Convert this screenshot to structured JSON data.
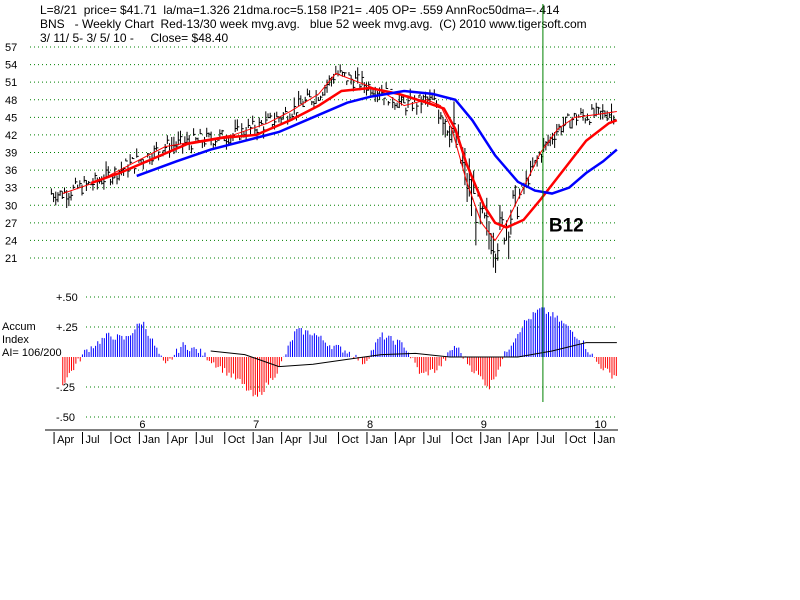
{
  "header": {
    "line1": "L=8/21  price= $41.71  la/ma=1.326 21dma.roc=5.158 IP21= .405 OP= .559 AnnRoc50dma=-.414",
    "line2": "BNS   - Weekly Chart  Red-13/30 week mvg.avg.   blue 52 week mvg.avg.  (C) 2010 www.tigersoft.com",
    "line3": "3/ 11/ 5- 3/ 5/ 10 -     Close= $48.40"
  },
  "accum_label": {
    "line1": "Accum",
    "line2": "Index",
    "line3": "AI= 106/200"
  },
  "signal_label": "B12",
  "colors": {
    "short_ma": "#ff0000",
    "long_ma": "#ff0000",
    "ma52": "#0000ff",
    "signal_line": "#008000",
    "accum_pos": "#0000ff",
    "accum_neg": "#ff0000",
    "grid": "#008000",
    "price_bars": "#000000"
  },
  "chart_data": [
    {
      "type": "line",
      "title": "BNS - Weekly Chart",
      "ylim": [
        19,
        58
      ],
      "y_ticks": [
        21,
        24,
        27,
        30,
        33,
        36,
        39,
        42,
        45,
        48,
        51,
        54,
        57
      ],
      "x_year_labels": [
        "6",
        "7",
        "8",
        "9",
        "10"
      ],
      "x_year_pos": [
        2006.0,
        2007.0,
        2008.0,
        2009.0,
        2010.0
      ],
      "x_month_labels": [
        "Apr",
        "Jul",
        "Oct",
        "Jan",
        "Apr",
        "Jul",
        "Oct",
        "Jan",
        "Apr",
        "Jul",
        "Oct",
        "Jan",
        "Apr",
        "Jul",
        "Oct",
        "Jan",
        "Apr",
        "Jul",
        "Oct",
        "Jan"
      ],
      "x_month_pos": [
        2005.25,
        2005.5,
        2005.75,
        2006.0,
        2006.25,
        2006.5,
        2006.75,
        2007.0,
        2007.25,
        2007.5,
        2007.75,
        2008.0,
        2008.25,
        2008.5,
        2008.75,
        2009.0,
        2009.25,
        2009.5,
        2009.75,
        2010.0
      ],
      "xlim": [
        2005.1,
        2010.18
      ],
      "signal_x": 2009.52,
      "series": [
        {
          "name": "Red-13 week mvg.avg.",
          "x": [
            2005.3,
            2005.6,
            2005.9,
            2006.2,
            2006.5,
            2006.8,
            2007.1,
            2007.3,
            2007.55,
            2007.7,
            2007.9,
            2008.1,
            2008.3,
            2008.5,
            2008.62,
            2008.72,
            2008.85,
            2008.98,
            2009.1,
            2009.2,
            2009.35,
            2009.5,
            2009.65,
            2009.8,
            2010.0,
            2010.17
          ],
          "y": [
            32,
            34,
            37,
            40,
            41,
            42,
            44,
            46,
            49,
            52.5,
            51,
            49.5,
            47,
            48,
            47,
            43,
            34,
            27,
            24,
            27,
            33,
            39,
            43,
            45,
            45.5,
            46
          ]
        },
        {
          "name": "Red-30 week mvg.avg.",
          "x": [
            2005.55,
            2005.8,
            2006.1,
            2006.4,
            2006.7,
            2007.0,
            2007.3,
            2007.55,
            2007.75,
            2008.0,
            2008.25,
            2008.5,
            2008.65,
            2008.75,
            2008.85,
            2009.0,
            2009.1,
            2009.2,
            2009.35,
            2009.5,
            2009.7,
            2009.9,
            2010.1,
            2010.17
          ],
          "y": [
            33.8,
            35.5,
            38,
            40.5,
            41.5,
            42,
            44.5,
            47,
            49.5,
            50,
            49,
            47.5,
            46.5,
            43,
            37,
            30,
            27,
            26.2,
            27.5,
            31,
            36,
            41,
            44,
            44.5
          ]
        },
        {
          "name": "blue 52 week mvg.avg.",
          "x": [
            2005.95,
            2006.3,
            2006.6,
            2006.9,
            2007.2,
            2007.5,
            2007.8,
            2008.0,
            2008.3,
            2008.55,
            2008.75,
            2008.9,
            2009.1,
            2009.3,
            2009.45,
            2009.6,
            2009.75,
            2009.9,
            2010.05,
            2010.17
          ],
          "y": [
            35,
            37.5,
            39.5,
            41,
            42.5,
            45,
            47.5,
            48.5,
            49.5,
            49,
            48,
            44.5,
            38.5,
            34,
            32.5,
            32,
            33,
            35.5,
            37.5,
            39.5
          ]
        }
      ]
    },
    {
      "type": "bar",
      "title": "Accum Index",
      "ylim": [
        -0.5,
        0.5
      ],
      "y_ticks_labels": [
        "+.50",
        "+.25",
        "-.25",
        "-.50"
      ],
      "y_ticks_values": [
        0.5,
        0.25,
        -0.25,
        -0.5
      ],
      "x_year_pos": [
        2006.0,
        2007.0,
        2008.0,
        2009.0,
        2010.0
      ],
      "series": [
        {
          "name": "Accum Index",
          "x": [
            2005.3,
            2005.5,
            2005.7,
            2005.85,
            2006.0,
            2006.2,
            2006.35,
            2006.5,
            2006.7,
            2006.85,
            2007.0,
            2007.2,
            2007.35,
            2007.5,
            2007.65,
            2007.8,
            2007.95,
            2008.1,
            2008.3,
            2008.45,
            2008.6,
            2008.75,
            2008.9,
            2009.05,
            2009.2,
            2009.35,
            2009.5,
            2009.6,
            2009.7,
            2009.85,
            2010.0,
            2010.12
          ],
          "y": [
            -0.22,
            0.05,
            0.18,
            0.15,
            0.3,
            -0.08,
            0.1,
            0.05,
            -0.1,
            -0.2,
            -0.35,
            -0.1,
            0.22,
            0.2,
            0.1,
            0.05,
            -0.05,
            0.18,
            0.1,
            -0.15,
            -0.1,
            0.1,
            -0.1,
            -0.25,
            0.05,
            0.28,
            0.4,
            0.35,
            0.28,
            0.15,
            -0.05,
            -0.15
          ]
        },
        {
          "name": "Accum Index mvg.avg.",
          "x": [
            2006.6,
            2006.9,
            2007.2,
            2007.5,
            2007.8,
            2008.1,
            2008.4,
            2008.7,
            2009.0,
            2009.3,
            2009.6,
            2009.9,
            2010.17
          ],
          "y": [
            0.05,
            0.02,
            -0.08,
            -0.06,
            -0.02,
            0.02,
            0.03,
            0.0,
            0.0,
            0.0,
            0.05,
            0.12,
            0.12
          ]
        }
      ]
    }
  ]
}
